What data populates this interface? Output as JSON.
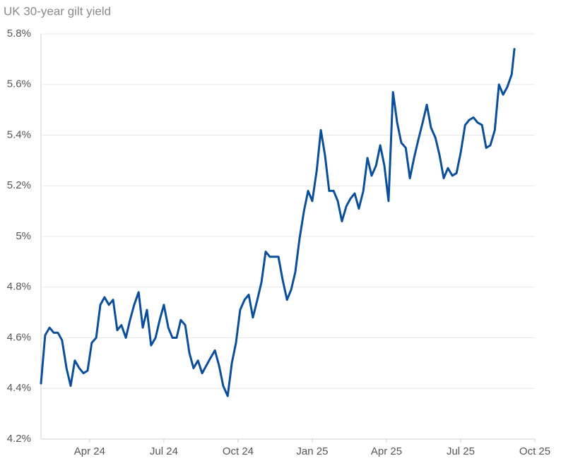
{
  "chart_data": {
    "type": "line",
    "title": "UK 30-year gilt yield",
    "x": [
      2024.086,
      2024.1,
      2024.115,
      2024.129,
      2024.143,
      2024.157,
      2024.172,
      2024.186,
      2024.2,
      2024.215,
      2024.229,
      2024.243,
      2024.257,
      2024.272,
      2024.286,
      2024.3,
      2024.315,
      2024.329,
      2024.343,
      2024.357,
      2024.372,
      2024.386,
      2024.4,
      2024.415,
      2024.429,
      2024.443,
      2024.457,
      2024.472,
      2024.486,
      2024.5,
      2024.515,
      2024.529,
      2024.543,
      2024.557,
      2024.572,
      2024.586,
      2024.6,
      2024.615,
      2024.629,
      2024.643,
      2024.657,
      2024.672,
      2024.686,
      2024.7,
      2024.715,
      2024.729,
      2024.743,
      2024.757,
      2024.772,
      2024.786,
      2024.8,
      2024.815,
      2024.829,
      2024.843,
      2024.857,
      2024.872,
      2024.886,
      2024.9,
      2024.915,
      2024.929,
      2024.943,
      2024.957,
      2024.972,
      2024.986,
      2025.0,
      2025.015,
      2025.029,
      2025.043,
      2025.057,
      2025.072,
      2025.086,
      2025.1,
      2025.115,
      2025.129,
      2025.143,
      2025.157,
      2025.172,
      2025.186,
      2025.2,
      2025.215,
      2025.229,
      2025.243,
      2025.257,
      2025.272,
      2025.286,
      2025.3,
      2025.315,
      2025.329,
      2025.343,
      2025.357,
      2025.372,
      2025.386,
      2025.4,
      2025.415,
      2025.429,
      2025.443,
      2025.457,
      2025.472,
      2025.486,
      2025.5,
      2025.515,
      2025.529,
      2025.543,
      2025.557,
      2025.572,
      2025.586,
      2025.6,
      2025.615,
      2025.629,
      2025.643,
      2025.657,
      2025.672,
      2025.681
    ],
    "series": [
      {
        "name": "UK 30-year gilt yield",
        "color": "#0b4e9b",
        "values": [
          4.42,
          4.61,
          4.64,
          4.62,
          4.62,
          4.59,
          4.48,
          4.41,
          4.51,
          4.48,
          4.46,
          4.47,
          4.58,
          4.6,
          4.73,
          4.76,
          4.73,
          4.75,
          4.63,
          4.65,
          4.6,
          4.67,
          4.73,
          4.78,
          4.64,
          4.71,
          4.57,
          4.6,
          4.67,
          4.73,
          4.64,
          4.6,
          4.6,
          4.67,
          4.65,
          4.54,
          4.48,
          4.51,
          4.46,
          4.49,
          4.52,
          4.55,
          4.49,
          4.41,
          4.37,
          4.5,
          4.58,
          4.71,
          4.75,
          4.77,
          4.68,
          4.75,
          4.82,
          4.94,
          4.92,
          4.92,
          4.92,
          4.83,
          4.75,
          4.79,
          4.86,
          4.99,
          5.1,
          5.18,
          5.14,
          5.26,
          5.42,
          5.32,
          5.18,
          5.18,
          5.14,
          5.06,
          5.12,
          5.15,
          5.17,
          5.11,
          5.18,
          5.31,
          5.24,
          5.28,
          5.36,
          5.28,
          5.14,
          5.57,
          5.45,
          5.37,
          5.35,
          5.23,
          5.31,
          5.38,
          5.45,
          5.52,
          5.43,
          5.39,
          5.32,
          5.23,
          5.27,
          5.24,
          5.25,
          5.33,
          5.44,
          5.46,
          5.47,
          5.45,
          5.44,
          5.35,
          5.36,
          5.42,
          5.6,
          5.56,
          5.59,
          5.64,
          5.74
        ]
      }
    ],
    "xlim": [
      2024.086,
      2025.75
    ],
    "xticks": [
      {
        "value": 2024.25,
        "label": "Apr 24"
      },
      {
        "value": 2024.5,
        "label": "Jul 24"
      },
      {
        "value": 2024.75,
        "label": "Oct 24"
      },
      {
        "value": 2025.0,
        "label": "Jan 25"
      },
      {
        "value": 2025.25,
        "label": "Apr 25"
      },
      {
        "value": 2025.5,
        "label": "Jul 25"
      },
      {
        "value": 2025.75,
        "label": "Oct 25"
      }
    ],
    "ylim": [
      4.2,
      5.8
    ],
    "yticks": [
      {
        "value": 4.2,
        "label": "4.2%"
      },
      {
        "value": 4.4,
        "label": "4.4%"
      },
      {
        "value": 4.6,
        "label": "4.6%"
      },
      {
        "value": 4.8,
        "label": "4.8%"
      },
      {
        "value": 5.0,
        "label": "5%"
      },
      {
        "value": 5.2,
        "label": "5.2%"
      },
      {
        "value": 5.4,
        "label": "5.4%"
      },
      {
        "value": 5.6,
        "label": "5.6%"
      },
      {
        "value": 5.8,
        "label": "5.8%"
      }
    ],
    "grid": true
  }
}
